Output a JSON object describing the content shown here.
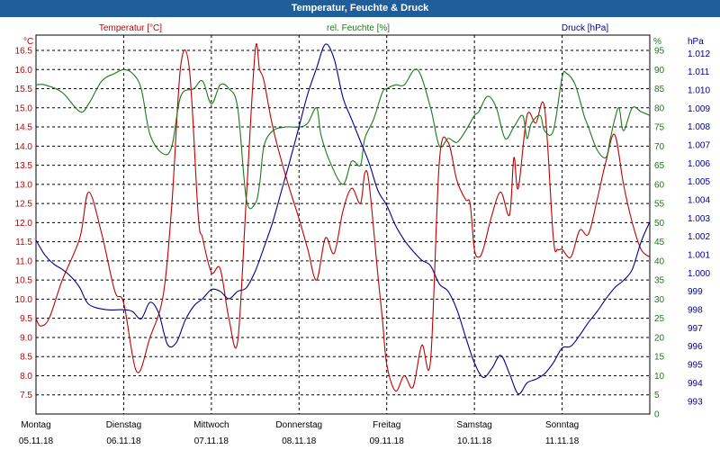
{
  "window": {
    "title": "Temperatur, Feuchte & Druck"
  },
  "chart_data": {
    "type": "line",
    "title": "Temperatur, Feuchte & Druck",
    "grid": true,
    "x_range": [
      0,
      7
    ],
    "x_ticks": [
      {
        "x": 0,
        "day": "Montag",
        "date": "05.11.18"
      },
      {
        "x": 1,
        "day": "Dienstag",
        "date": "06.11.18"
      },
      {
        "x": 2,
        "day": "Mittwoch",
        "date": "07.11.18"
      },
      {
        "x": 3,
        "day": "Donnerstag",
        "date": "08.11.18"
      },
      {
        "x": 4,
        "day": "Freitag",
        "date": "09.11.18"
      },
      {
        "x": 5,
        "day": "Samstag",
        "date": "10.11.18"
      },
      {
        "x": 6,
        "day": "Sonntag",
        "date": "11.11.18"
      }
    ],
    "axes": {
      "temperature": {
        "unit_label": "°C",
        "range": [
          7.0,
          16.9
        ],
        "ticks": [
          "7.5",
          "8.0",
          "8.5",
          "9.0",
          "9.5",
          "10.0",
          "10.5",
          "11.0",
          "11.5",
          "12.0",
          "12.5",
          "13.0",
          "13.5",
          "14.0",
          "14.5",
          "15.0",
          "15.5",
          "16.0",
          "16.5"
        ]
      },
      "humidity": {
        "unit_label": "%",
        "range": [
          0,
          99
        ],
        "ticks": [
          "0",
          "5",
          "10",
          "15",
          "20",
          "25",
          "30",
          "35",
          "40",
          "45",
          "50",
          "55",
          "60",
          "65",
          "70",
          "75",
          "80",
          "85",
          "90",
          "95"
        ]
      },
      "pressure": {
        "unit_label": "hPa",
        "range": [
          992.3,
          1013.0
        ],
        "ticks": [
          "993",
          "994",
          "995",
          "996",
          "997",
          "998",
          "999",
          "1.000",
          "1.001",
          "1.002",
          "1.003",
          "1.004",
          "1.005",
          "1.006",
          "1.007",
          "1.008",
          "1.009",
          "1.010",
          "1.011",
          "1.012"
        ]
      }
    },
    "series": [
      {
        "name": "Temperatur [°C]",
        "axis": "temperature",
        "color": "#c00000",
        "x": [
          0,
          0.05,
          0.15,
          0.3,
          0.5,
          0.6,
          0.75,
          0.9,
          1.0,
          1.15,
          1.3,
          1.45,
          1.55,
          1.65,
          1.75,
          1.85,
          1.9,
          2.0,
          2.1,
          2.2,
          2.3,
          2.4,
          2.5,
          2.55,
          2.6,
          2.7,
          2.85,
          3.0,
          3.1,
          3.2,
          3.3,
          3.4,
          3.5,
          3.6,
          3.7,
          3.75,
          3.8,
          3.9,
          3.95,
          4.0,
          4.1,
          4.2,
          4.3,
          4.4,
          4.5,
          4.6,
          4.7,
          4.8,
          4.9,
          4.95,
          5.0,
          5.05,
          5.1,
          5.2,
          5.3,
          5.4,
          5.45,
          5.5,
          5.6,
          5.7,
          5.8,
          5.9,
          5.95,
          6.0,
          6.1,
          6.2,
          6.3,
          6.4,
          6.5,
          6.6,
          6.7,
          6.8,
          6.9,
          7.0
        ],
        "y": [
          9.5,
          9.3,
          9.5,
          10.5,
          11.6,
          12.8,
          11.7,
          10.2,
          9.9,
          8.1,
          9.0,
          10.1,
          12.5,
          16.1,
          16.0,
          12.2,
          11.6,
          10.7,
          10.8,
          9.5,
          8.9,
          12.7,
          16.5,
          16.0,
          15.7,
          14.5,
          13.2,
          12.1,
          11.3,
          10.5,
          11.6,
          11.2,
          12.3,
          12.9,
          12.5,
          13.3,
          13.0,
          10.6,
          9.5,
          8.3,
          7.6,
          8.0,
          7.7,
          8.8,
          8.4,
          13.6,
          14.1,
          13.1,
          12.6,
          12.5,
          11.3,
          11.1,
          11.3,
          12.2,
          12.8,
          12.2,
          13.7,
          12.9,
          14.8,
          14.6,
          15.0,
          11.6,
          11.3,
          11.3,
          11.1,
          11.8,
          11.7,
          12.6,
          13.6,
          14.3,
          13.0,
          12.0,
          11.3,
          11.1
        ]
      },
      {
        "name": "rel. Feuchte [%]",
        "axis": "humidity",
        "color": "#1a7a1a",
        "x": [
          0,
          0.1,
          0.3,
          0.5,
          0.6,
          0.75,
          0.9,
          1.0,
          1.1,
          1.2,
          1.3,
          1.45,
          1.55,
          1.65,
          1.8,
          1.9,
          2.0,
          2.1,
          2.2,
          2.3,
          2.4,
          2.5,
          2.55,
          2.6,
          2.7,
          2.85,
          3.0,
          3.1,
          3.2,
          3.25,
          3.35,
          3.5,
          3.6,
          3.7,
          3.75,
          3.85,
          3.95,
          4.0,
          4.1,
          4.2,
          4.35,
          4.5,
          4.6,
          4.7,
          4.8,
          4.9,
          5.0,
          5.05,
          5.15,
          5.25,
          5.35,
          5.45,
          5.55,
          5.6,
          5.65,
          5.75,
          5.8,
          5.9,
          6.0,
          6.05,
          6.15,
          6.25,
          6.3,
          6.4,
          6.5,
          6.55,
          6.6,
          6.65,
          6.7,
          6.8,
          6.9,
          7.0
        ],
        "y": [
          86,
          86,
          84,
          79,
          81,
          87,
          89,
          90,
          89,
          85,
          73,
          68,
          70,
          83,
          85,
          87,
          81,
          86,
          85,
          80,
          56,
          55,
          60,
          70,
          74,
          75,
          75,
          76,
          80,
          73,
          66,
          60,
          66,
          65,
          72,
          77,
          84,
          85,
          86,
          86,
          90,
          80,
          70,
          72,
          71,
          74,
          78,
          79,
          83,
          80,
          72,
          75,
          78,
          72,
          76,
          78,
          74,
          74,
          88,
          89,
          86,
          78,
          75,
          69,
          67,
          72,
          77,
          80,
          74,
          80,
          79,
          78
        ]
      },
      {
        "name": "Druck [hPa]",
        "axis": "pressure",
        "color": "#00008b",
        "x": [
          0,
          0.1,
          0.2,
          0.3,
          0.4,
          0.5,
          0.6,
          0.8,
          1.0,
          1.1,
          1.2,
          1.3,
          1.4,
          1.5,
          1.6,
          1.7,
          1.8,
          1.9,
          2.0,
          2.1,
          2.2,
          2.3,
          2.4,
          2.5,
          2.6,
          2.7,
          2.8,
          2.9,
          3.0,
          3.1,
          3.2,
          3.3,
          3.4,
          3.5,
          3.6,
          3.7,
          3.8,
          3.9,
          4.0,
          4.1,
          4.2,
          4.3,
          4.4,
          4.5,
          4.6,
          4.7,
          4.8,
          4.9,
          5.0,
          5.1,
          5.2,
          5.3,
          5.4,
          5.5,
          5.6,
          5.7,
          5.8,
          5.9,
          6.0,
          6.1,
          6.2,
          6.3,
          6.4,
          6.5,
          6.6,
          6.7,
          6.8,
          6.9,
          7.0
        ],
        "y": [
          1001.8,
          1001.0,
          1000.5,
          1000.2,
          999.8,
          999.2,
          998.3,
          998.0,
          998.0,
          997.9,
          997.5,
          998.4,
          997.8,
          996.1,
          996.2,
          997.4,
          998.2,
          998.6,
          999.1,
          999.0,
          998.6,
          999.0,
          999.2,
          1000.1,
          1001.4,
          1002.8,
          1004.5,
          1006.2,
          1008.0,
          1009.8,
          1011.2,
          1012.5,
          1011.7,
          1009.6,
          1008.4,
          1007.2,
          1006.0,
          1004.5,
          1003.7,
          1002.6,
          1001.8,
          1001.2,
          1000.7,
          1000.4,
          999.4,
          999.0,
          998.0,
          996.5,
          995.1,
          994.3,
          994.8,
          995.5,
          994.5,
          993.4,
          994.0,
          994.2,
          994.5,
          995.1,
          995.9,
          996.0,
          996.6,
          997.3,
          997.9,
          998.6,
          999.2,
          999.6,
          1000.2,
          1001.7,
          1002.8
        ]
      }
    ]
  }
}
